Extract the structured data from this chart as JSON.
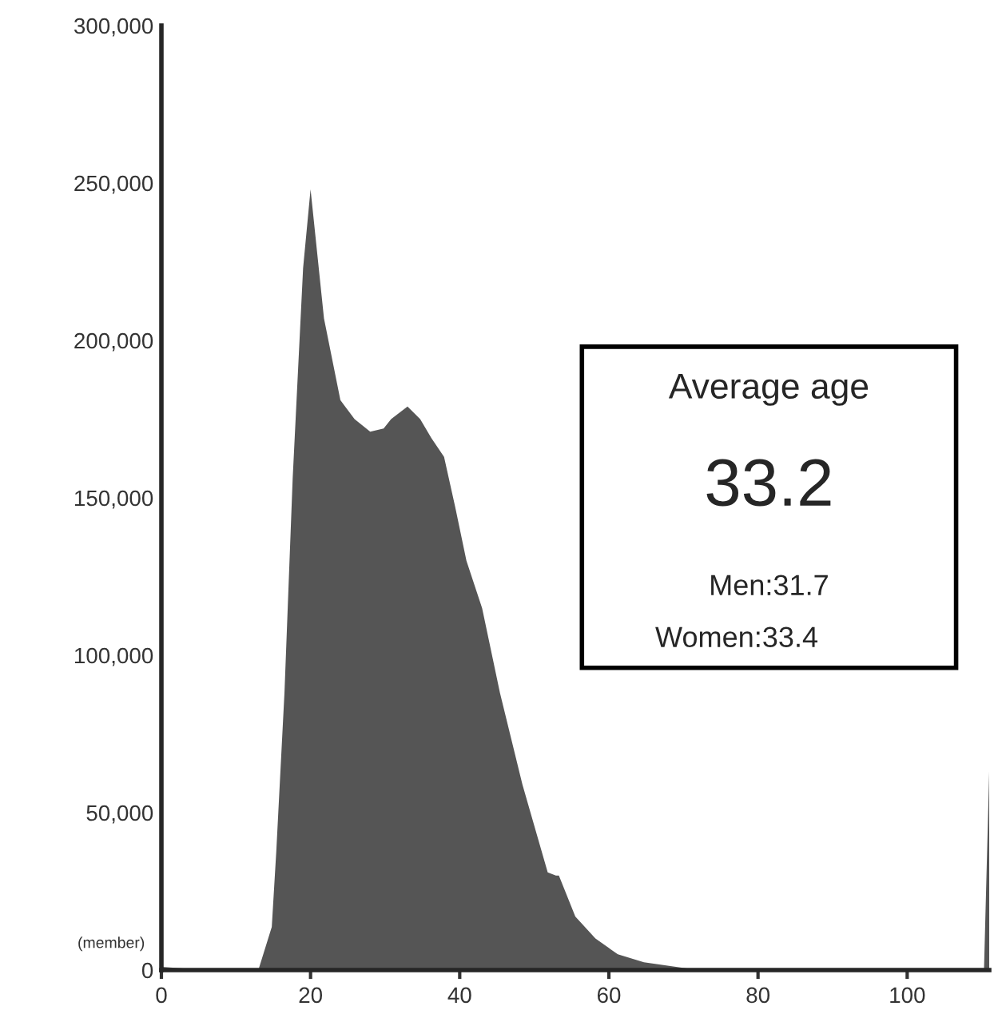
{
  "chart_data": {
    "type": "area",
    "x": [
      0,
      3,
      5,
      13,
      14.8,
      15.4,
      16.5,
      17.6,
      19,
      20,
      21.8,
      24,
      25.9,
      28,
      29.8,
      30.8,
      33,
      34.7,
      36.2,
      37.9,
      39.4,
      40.9,
      43,
      45.4,
      48.4,
      51.8,
      52.9,
      53.3,
      55.5,
      58.2,
      61.2,
      64.7,
      70.5,
      75,
      110.3,
      111
    ],
    "series": [
      {
        "color": "#555555",
        "values": [
          1000,
          500,
          0,
          0,
          13700,
          37500,
          88000,
          156000,
          223000,
          248000,
          207000,
          181000,
          175000,
          171000,
          172000,
          175000,
          179000,
          175000,
          169000,
          163000,
          147000,
          130000,
          115000,
          88000,
          59000,
          31000,
          30000,
          30000,
          17000,
          10000,
          5000,
          2500,
          500,
          0,
          0,
          63000
        ]
      }
    ],
    "xlim": [
      0,
      111
    ],
    "xticks": [
      0,
      20,
      40,
      60,
      80,
      100
    ],
    "ylim": [
      0,
      300000
    ],
    "yticks": [
      0,
      {
        "value": 50000,
        "label": "50,000"
      },
      {
        "value": 100000,
        "label": "100,000"
      },
      {
        "value": 150000,
        "label": "150,000"
      },
      {
        "value": 200000,
        "label": "200,000"
      },
      {
        "value": 250000,
        "label": "250,000"
      },
      {
        "value": 300000,
        "label": "300,000"
      }
    ],
    "grid": false,
    "legend": false,
    "annotations": [
      "(member)",
      "Average age",
      "33.2",
      "Men:31.7",
      "Women:33.4"
    ]
  }
}
